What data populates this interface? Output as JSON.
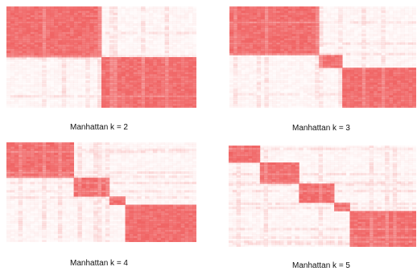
{
  "colors": {
    "cell": "#f06464",
    "background": "#ffffff"
  },
  "chart_data": [
    {
      "type": "heatmap",
      "title": "Manhattan k = 2",
      "clusters": 2,
      "blocks": [
        [
          0.0,
          0.49
        ],
        [
          0.49,
          1.0
        ]
      ],
      "grid": false
    },
    {
      "type": "heatmap",
      "title": "Manhattan k = 3",
      "clusters": 3,
      "blocks": [
        [
          0.0,
          0.47
        ],
        [
          0.47,
          0.61
        ],
        [
          0.61,
          1.0
        ]
      ],
      "grid": false
    },
    {
      "type": "heatmap",
      "title": "Manhattan k = 4",
      "clusters": 4,
      "blocks": [
        [
          0.0,
          0.36
        ],
        [
          0.36,
          0.54
        ],
        [
          0.54,
          0.62
        ],
        [
          0.62,
          1.0
        ]
      ],
      "grid": false
    },
    {
      "type": "heatmap",
      "title": "Manhattan k = 5",
      "clusters": 5,
      "blocks": [
        [
          0.0,
          0.16
        ],
        [
          0.16,
          0.37
        ],
        [
          0.37,
          0.56
        ],
        [
          0.56,
          0.64
        ],
        [
          0.64,
          1.0
        ]
      ],
      "grid": false
    }
  ]
}
